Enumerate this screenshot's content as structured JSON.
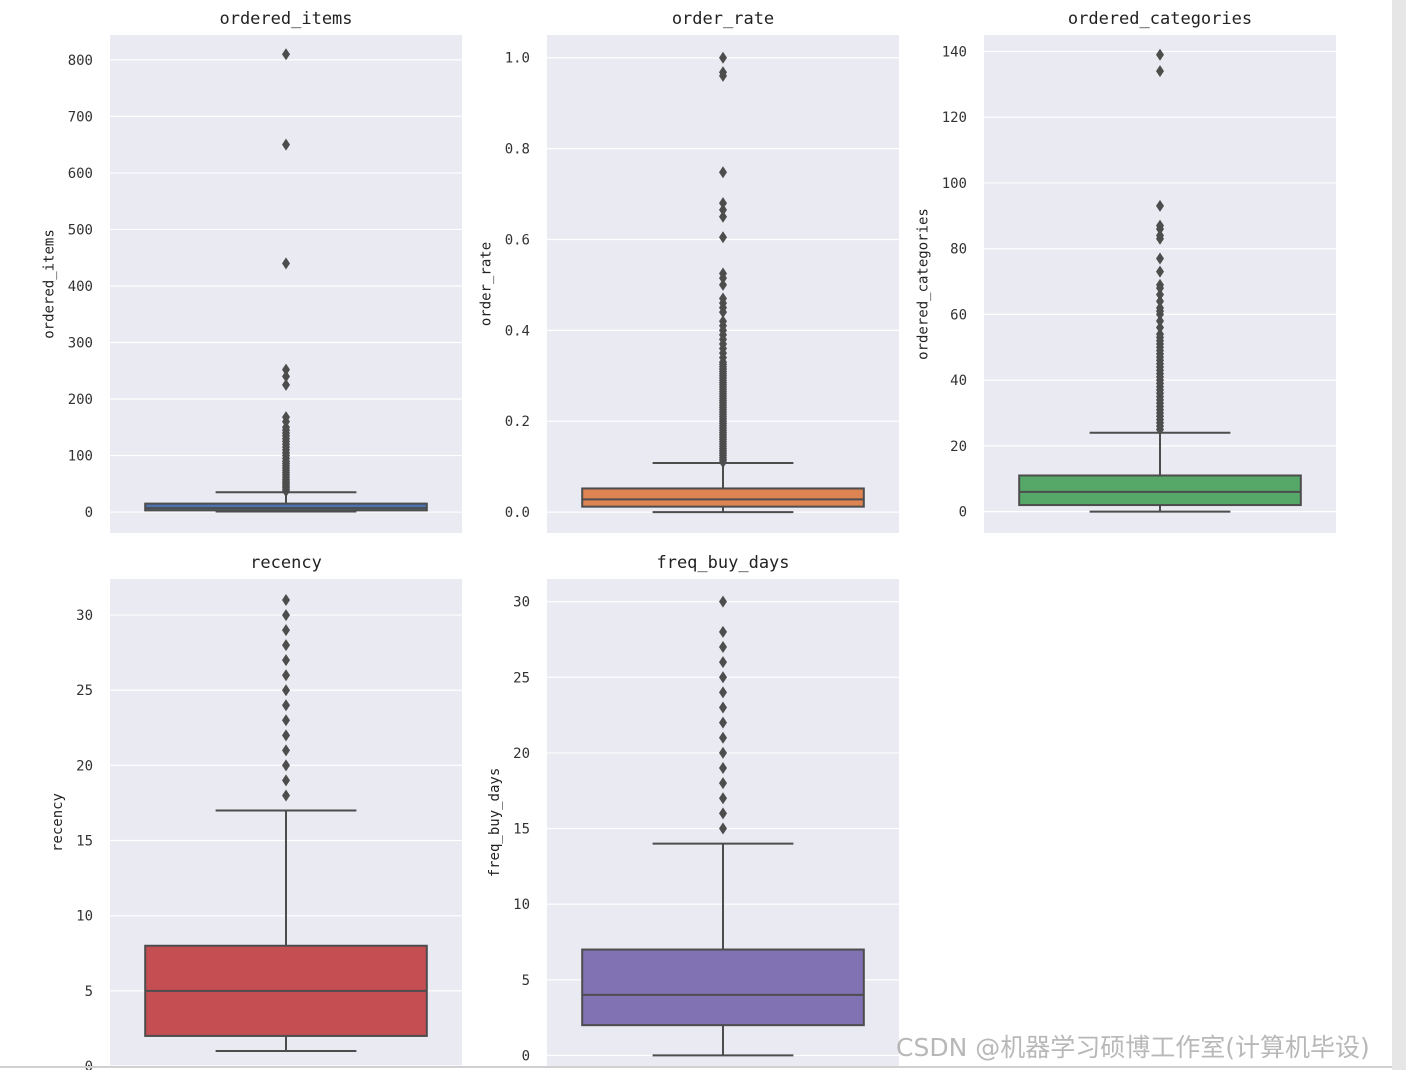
{
  "chart_data": [
    {
      "type": "box",
      "title": "ordered_items",
      "ylabel": "ordered_items",
      "color": "#4c72b0",
      "ylim": [
        -37,
        844
      ],
      "yticks": [
        0,
        100,
        200,
        300,
        400,
        500,
        600,
        700,
        800
      ],
      "ytick_labels": [
        "0",
        "100",
        "200",
        "300",
        "400",
        "500",
        "600",
        "700",
        "800"
      ],
      "box": {
        "whisker_low": 1,
        "q1": 3,
        "median": 7,
        "q3": 15,
        "whisker_high": 35
      },
      "outliers": [
        37,
        40,
        43,
        46,
        49,
        52,
        55,
        58,
        62,
        66,
        70,
        74,
        78,
        82,
        86,
        90,
        95,
        100,
        105,
        110,
        115,
        120,
        125,
        130,
        135,
        140,
        145,
        150,
        160,
        168,
        225,
        240,
        252,
        440,
        650,
        810
      ]
    },
    {
      "type": "box",
      "title": "order_rate",
      "ylabel": "order_rate",
      "color": "#dd8452",
      "ylim": [
        -0.046,
        1.05
      ],
      "yticks": [
        0,
        0.2,
        0.4,
        0.6,
        0.8,
        1.0
      ],
      "ytick_labels": [
        "0.0",
        "0.2",
        "0.4",
        "0.6",
        "0.8",
        "1.0"
      ],
      "box": {
        "whisker_low": 0.0,
        "q1": 0.012,
        "median": 0.028,
        "q3": 0.052,
        "whisker_high": 0.108
      },
      "outliers": [
        0.11,
        0.115,
        0.12,
        0.125,
        0.13,
        0.135,
        0.14,
        0.145,
        0.15,
        0.155,
        0.16,
        0.165,
        0.17,
        0.175,
        0.18,
        0.185,
        0.19,
        0.195,
        0.2,
        0.205,
        0.21,
        0.215,
        0.22,
        0.225,
        0.23,
        0.235,
        0.24,
        0.245,
        0.25,
        0.255,
        0.26,
        0.265,
        0.27,
        0.275,
        0.28,
        0.285,
        0.29,
        0.295,
        0.3,
        0.305,
        0.31,
        0.315,
        0.32,
        0.325,
        0.33,
        0.34,
        0.35,
        0.36,
        0.37,
        0.38,
        0.39,
        0.4,
        0.41,
        0.42,
        0.44,
        0.45,
        0.46,
        0.47,
        0.5,
        0.515,
        0.525,
        0.605,
        0.65,
        0.665,
        0.68,
        0.748,
        0.96,
        0.968,
        1.0
      ]
    },
    {
      "type": "box",
      "title": "ordered_categories",
      "ylabel": "ordered_categories",
      "color": "#55a868",
      "ylim": [
        -6.5,
        145
      ],
      "yticks": [
        0,
        20,
        40,
        60,
        80,
        100,
        120,
        140
      ],
      "ytick_labels": [
        "0",
        "20",
        "40",
        "60",
        "80",
        "100",
        "120",
        "140"
      ],
      "box": {
        "whisker_low": 0,
        "q1": 2,
        "median": 6,
        "q3": 11,
        "whisker_high": 24
      },
      "outliers": [
        25,
        26,
        27,
        28,
        29,
        30,
        31,
        32,
        33,
        34,
        35,
        36,
        37,
        38,
        39,
        40,
        41,
        42,
        43,
        44,
        45,
        46,
        47,
        48,
        49,
        50,
        51,
        52,
        53,
        54,
        56,
        58,
        60,
        61,
        62,
        64,
        66,
        68,
        69,
        73,
        77,
        83,
        84,
        86,
        87,
        93,
        134,
        139
      ]
    },
    {
      "type": "box",
      "title": "recency",
      "ylabel": "recency",
      "color": "#c44e52",
      "ylim": [
        0,
        32.4
      ],
      "yticks": [
        0,
        5,
        10,
        15,
        20,
        25,
        30
      ],
      "ytick_labels": [
        "0",
        "5",
        "10",
        "15",
        "20",
        "25",
        "30"
      ],
      "box": {
        "whisker_low": 1,
        "q1": 2,
        "median": 5,
        "q3": 8,
        "whisker_high": 17
      },
      "outliers": [
        18,
        19,
        20,
        21,
        22,
        23,
        24,
        25,
        26,
        27,
        28,
        29,
        30,
        31
      ]
    },
    {
      "type": "box",
      "title": "freq_buy_days",
      "ylabel": "freq_buy_days",
      "color": "#8172b3",
      "ylim": [
        -0.7,
        31.5
      ],
      "yticks": [
        0,
        5,
        10,
        15,
        20,
        25,
        30
      ],
      "ytick_labels": [
        "0",
        "5",
        "10",
        "15",
        "20",
        "25",
        "30"
      ],
      "box": {
        "whisker_low": 0,
        "q1": 2,
        "median": 4,
        "q3": 7,
        "whisker_high": 14
      },
      "outliers": [
        15,
        16,
        17,
        18,
        19,
        20,
        21,
        22,
        23,
        24,
        25,
        26,
        27,
        28,
        30
      ]
    }
  ],
  "watermark": "CSDN @机器学习硕博工作室(计算机毕设)"
}
